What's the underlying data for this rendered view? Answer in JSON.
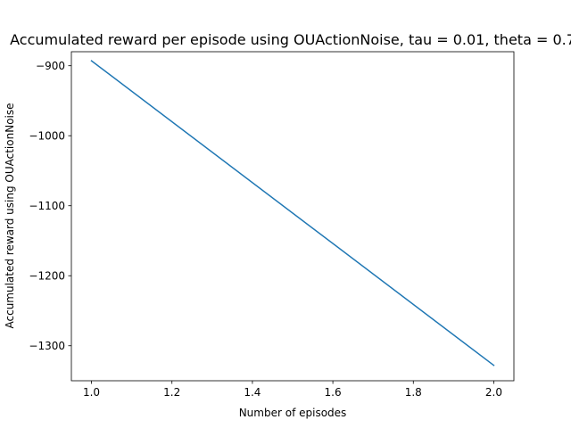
{
  "chart_data": {
    "type": "line",
    "title": "Accumulated reward per episode using OUActionNoise, tau = 0.01, theta = 0.7",
    "xlabel": "Number of episodes",
    "ylabel": "Accumulated reward using OUActionNoise",
    "xlim": [
      0.95,
      2.05
    ],
    "ylim": [
      -1350,
      -880
    ],
    "xticks": [
      1.0,
      1.2,
      1.4,
      1.6,
      1.8,
      2.0
    ],
    "xtick_labels": [
      "1.0",
      "1.2",
      "1.4",
      "1.6",
      "1.8",
      "2.0"
    ],
    "yticks": [
      -900,
      -1000,
      -1100,
      -1200,
      -1300
    ],
    "ytick_labels": [
      "−900",
      "−1000",
      "−1100",
      "−1200",
      "−1300"
    ],
    "grid": false,
    "series": [
      {
        "x": [
          1.0,
          2.0
        ],
        "y": [
          -893,
          -1328
        ],
        "color": "#1f77b4"
      }
    ]
  }
}
